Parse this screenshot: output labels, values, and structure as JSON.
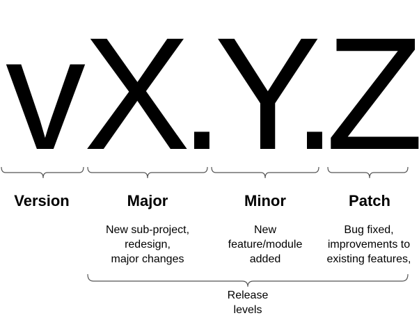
{
  "version_string": {
    "v": "v",
    "x": "X",
    "dot1": ".",
    "y": "Y",
    "dot2": ".",
    "z": "Z"
  },
  "segments": [
    {
      "title": "Version",
      "description": ""
    },
    {
      "title": "Major",
      "description": "New sub-project,\nredesign,\nmajor changes"
    },
    {
      "title": "Minor",
      "description": "New\nfeature/module\nadded"
    },
    {
      "title": "Patch",
      "description": "Bug fixed,\nimprovements to\nexisting features,"
    }
  ],
  "release_levels_label": "Release\nlevels"
}
